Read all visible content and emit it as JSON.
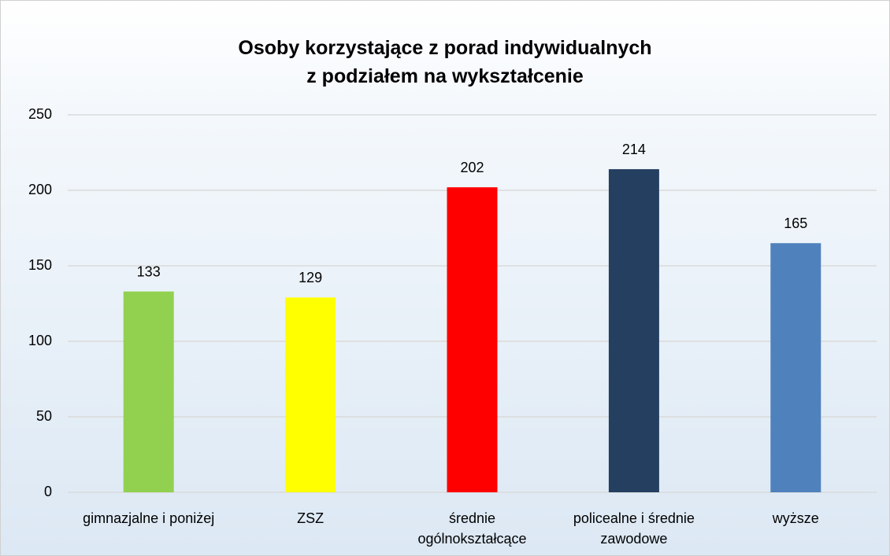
{
  "chart_data": {
    "type": "bar",
    "title": "Osoby korzystające z porad indywidualnych\nz podziałem na wykształcenie",
    "categories": [
      "gimnazjalne i poniżej",
      "ZSZ",
      "średnie\nogólnokształcące",
      "policealne i średnie\nzawodowe",
      "wyższe"
    ],
    "values": [
      133,
      129,
      202,
      214,
      165
    ],
    "colors": [
      "#92d050",
      "#ffff00",
      "#ff0000",
      "#243f60",
      "#4f81bd"
    ],
    "ylim": [
      0,
      250
    ],
    "yticks": [
      0,
      50,
      100,
      150,
      200,
      250
    ],
    "grid": true
  }
}
